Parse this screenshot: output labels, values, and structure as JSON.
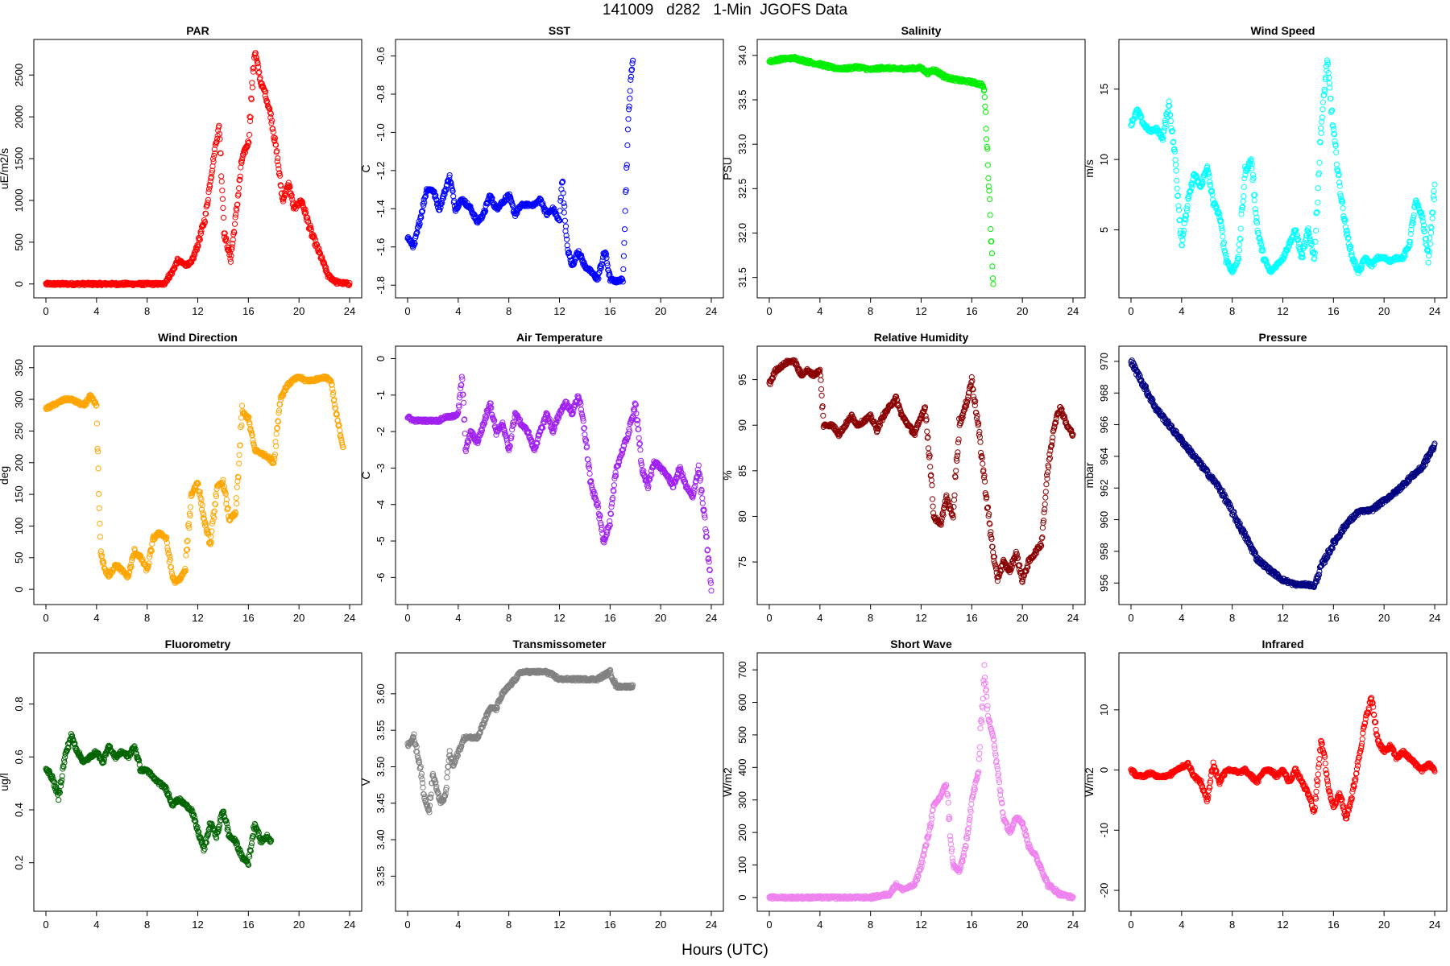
{
  "page": {
    "title": "141009   d282   1-Min  JGOFS Data",
    "xlabel": "Hours (UTC)"
  },
  "x_axis": {
    "xlim": [
      0,
      24
    ],
    "ticks": [
      0,
      4,
      8,
      12,
      16,
      20,
      24
    ]
  },
  "chart_data": [
    {
      "type": "scatter",
      "title": "PAR",
      "ylabel": "uE/m2/s",
      "color": "#ff0000",
      "ylim": [
        -60,
        2820
      ],
      "yticks": [
        0,
        500,
        1000,
        1500,
        2000,
        2500
      ],
      "x": [
        0,
        4,
        8,
        9.3,
        10,
        10.4,
        11,
        11.5,
        12,
        12.6,
        13,
        13.4,
        13.7,
        14.1,
        14.6,
        15,
        15.5,
        16,
        16.5,
        17,
        17.3,
        17.8,
        18.3,
        18.7,
        19.2,
        19.6,
        20.2,
        21,
        21.8,
        22.3,
        23,
        24
      ],
      "y": [
        0,
        0,
        0,
        0,
        150,
        280,
        230,
        250,
        470,
        800,
        1250,
        1650,
        1900,
        600,
        300,
        800,
        1500,
        1700,
        2800,
        2400,
        2300,
        2000,
        1500,
        1000,
        1200,
        900,
        1000,
        600,
        300,
        100,
        20,
        0
      ]
    },
    {
      "type": "scatter",
      "title": "SST",
      "ylabel": "C",
      "color": "#0000ff",
      "ylim": [
        -1.82,
        -0.56
      ],
      "yticks": [
        -0.6,
        -0.8,
        -1.0,
        -1.2,
        -1.4,
        -1.6,
        -1.8
      ],
      "xmax": 17.8,
      "x": [
        0,
        0.5,
        1,
        1.5,
        2,
        2.5,
        3,
        3.3,
        3.8,
        4.3,
        5,
        5.5,
        6,
        6.5,
        7,
        8,
        8.5,
        9,
        10,
        10.5,
        11,
        11.5,
        12,
        12.2,
        12.6,
        13,
        13.5,
        14,
        14.5,
        15,
        15.6,
        16,
        16.5,
        17,
        17.3,
        17.5,
        17.8
      ],
      "y": [
        -1.55,
        -1.6,
        -1.45,
        -1.3,
        -1.3,
        -1.4,
        -1.3,
        -1.23,
        -1.4,
        -1.35,
        -1.4,
        -1.47,
        -1.43,
        -1.33,
        -1.4,
        -1.33,
        -1.43,
        -1.38,
        -1.38,
        -1.35,
        -1.43,
        -1.4,
        -1.47,
        -1.23,
        -1.6,
        -1.7,
        -1.62,
        -1.7,
        -1.73,
        -1.77,
        -1.62,
        -1.77,
        -1.78,
        -1.77,
        -1.2,
        -0.85,
        -0.6
      ]
    },
    {
      "type": "scatter",
      "title": "Salinity",
      "ylabel": "PSU",
      "color": "#00ee00",
      "ylim": [
        31.37,
        34.08
      ],
      "yticks": [
        31.5,
        32.0,
        32.5,
        33.0,
        33.5,
        34.0
      ],
      "xmax": 17.7,
      "x": [
        0,
        1,
        2,
        3,
        4,
        5,
        6,
        7,
        8,
        9,
        10,
        11,
        12,
        12.5,
        13,
        14,
        15,
        16,
        16.8,
        17.0,
        17.2,
        17.4,
        17.6,
        17.7
      ],
      "y": [
        33.93,
        33.96,
        33.97,
        33.93,
        33.9,
        33.86,
        33.85,
        33.87,
        33.84,
        33.86,
        33.85,
        33.85,
        33.86,
        33.8,
        33.84,
        33.75,
        33.72,
        33.7,
        33.67,
        33.6,
        33.0,
        32.4,
        31.7,
        31.43
      ]
    },
    {
      "type": "scatter",
      "title": "Wind Speed",
      "ylabel": "m/s",
      "color": "#00ffff",
      "ylim": [
        0.8,
        17.9
      ],
      "yticks": [
        5,
        10,
        15
      ],
      "x": [
        0,
        0.5,
        1,
        1.5,
        2,
        2.5,
        3,
        3.5,
        4,
        4.5,
        5,
        5.5,
        6,
        6.5,
        7,
        7.5,
        8,
        8.5,
        9,
        9.5,
        10,
        10.5,
        11,
        11.5,
        12,
        12.5,
        13,
        13.5,
        14,
        14.5,
        15,
        15.5,
        16,
        16.5,
        17,
        17.5,
        18,
        18.5,
        19,
        19.5,
        20,
        20.5,
        21,
        21.5,
        22,
        22.5,
        23,
        23.5,
        24
      ],
      "y": [
        12.5,
        13.5,
        12.5,
        12,
        12.2,
        11.5,
        14,
        10,
        4,
        7,
        9,
        8,
        9.5,
        7,
        6,
        3,
        2,
        3,
        9,
        10,
        5,
        3,
        2,
        2.5,
        3,
        4,
        5,
        3,
        5,
        3,
        12,
        17,
        12,
        8,
        5,
        3,
        2,
        3,
        2.5,
        3,
        3,
        2.8,
        3,
        3,
        4,
        7,
        6,
        3,
        8
      ]
    },
    {
      "type": "scatter",
      "title": "Wind Direction",
      "ylabel": "deg",
      "color": "#ffa500",
      "ylim": [
        -10,
        370
      ],
      "yticks": [
        0,
        50,
        100,
        150,
        200,
        250,
        300,
        350
      ],
      "x": [
        0,
        0.5,
        1,
        1.5,
        2,
        2.5,
        3,
        3.5,
        4,
        4.3,
        4.7,
        5,
        5.5,
        6,
        6.5,
        7,
        7.5,
        8,
        8.5,
        9,
        9.5,
        10,
        10.3,
        10.7,
        11,
        11.5,
        12,
        12.5,
        13,
        13.5,
        14,
        14.5,
        15,
        15.5,
        16,
        16.5,
        17,
        17.5,
        18,
        18.5,
        19,
        19.5,
        20,
        20.5,
        21,
        21.5,
        22,
        22.5,
        23,
        23.5
      ],
      "y": [
        285,
        290,
        295,
        300,
        300,
        295,
        290,
        305,
        290,
        60,
        30,
        20,
        40,
        30,
        20,
        60,
        50,
        30,
        80,
        90,
        80,
        20,
        10,
        20,
        30,
        150,
        170,
        110,
        70,
        160,
        170,
        110,
        120,
        280,
        270,
        220,
        215,
        210,
        200,
        300,
        320,
        330,
        335,
        330,
        330,
        332,
        335,
        330,
        270,
        225
      ]
    },
    {
      "type": "scatter",
      "title": "Air Temperature",
      "ylabel": "C",
      "color": "#a020f0",
      "ylim": [
        -6.5,
        0.1
      ],
      "yticks": [
        0,
        -1,
        -2,
        -3,
        -4,
        -5,
        -6
      ],
      "x": [
        0,
        0.5,
        1,
        1.5,
        2,
        2.5,
        3,
        3.5,
        4,
        4.3,
        4.6,
        5,
        5.5,
        6,
        6.5,
        7,
        7.5,
        8,
        8.5,
        9,
        9.5,
        10,
        10.5,
        11,
        11.5,
        12,
        12.5,
        13,
        13.5,
        14,
        14.5,
        15,
        15.5,
        16,
        16.5,
        17,
        17.5,
        18,
        18.5,
        19,
        19.5,
        20,
        20.5,
        21,
        21.5,
        22,
        22.5,
        23,
        23.5,
        24
      ],
      "y": [
        -1.6,
        -1.7,
        -1.7,
        -1.7,
        -1.7,
        -1.7,
        -1.6,
        -1.6,
        -1.5,
        -0.5,
        -2.5,
        -2.0,
        -2.3,
        -1.8,
        -1.2,
        -2.0,
        -1.8,
        -2.5,
        -1.5,
        -1.8,
        -2.0,
        -2.5,
        -2.0,
        -1.5,
        -2.0,
        -1.5,
        -1.2,
        -1.5,
        -1.0,
        -2.0,
        -3.5,
        -4.0,
        -5.0,
        -4.5,
        -3.0,
        -2.5,
        -2.0,
        -1.2,
        -3.0,
        -3.5,
        -2.8,
        -3.0,
        -3.2,
        -3.5,
        -3.0,
        -3.5,
        -3.8,
        -3.0,
        -4.5,
        -6.3
      ]
    },
    {
      "type": "scatter",
      "title": "Relative Humidity",
      "ylabel": "%",
      "color": "#8b0000",
      "ylim": [
        71.3,
        97.7
      ],
      "yticks": [
        75,
        80,
        85,
        90,
        95
      ],
      "x": [
        0,
        0.5,
        1,
        1.5,
        2,
        2.5,
        3,
        3.5,
        4,
        4.3,
        5,
        5.5,
        6,
        6.5,
        7,
        7.5,
        8,
        8.5,
        9,
        9.5,
        10,
        10.5,
        11,
        11.5,
        12,
        12.3,
        12.7,
        13,
        13.5,
        14,
        14.5,
        15,
        15.5,
        16,
        16.5,
        17,
        17.5,
        18,
        18.5,
        19,
        19.5,
        20,
        20.5,
        21,
        21.5,
        22,
        22.5,
        23,
        23.5,
        24
      ],
      "y": [
        94.5,
        96,
        96.5,
        97,
        97,
        95.5,
        96,
        95.5,
        96,
        90,
        90,
        89,
        90,
        91,
        90,
        90.5,
        91,
        89.5,
        91,
        92,
        93,
        91,
        90,
        89,
        91,
        92,
        86,
        80,
        79,
        82,
        80,
        90,
        92,
        95,
        90,
        84,
        78,
        73,
        75,
        74,
        76,
        73,
        75,
        76,
        77,
        85,
        90,
        92,
        90,
        89
      ]
    },
    {
      "type": "scatter",
      "title": "Pressure",
      "ylabel": "mbar",
      "color": "#000080",
      "ylim": [
        955.2,
        970.4
      ],
      "yticks": [
        956,
        958,
        960,
        962,
        964,
        966,
        968,
        970
      ],
      "x": [
        0,
        1,
        2,
        3,
        4,
        5,
        6,
        7,
        8,
        9,
        10,
        11,
        12,
        13,
        14,
        14.5,
        15,
        16,
        17,
        18,
        19,
        20,
        21,
        22,
        23,
        24
      ],
      "y": [
        970,
        968.5,
        967,
        966,
        965,
        964,
        963,
        962,
        960.5,
        959,
        957.5,
        956.8,
        956.2,
        955.9,
        955.9,
        955.8,
        957,
        958.5,
        959.7,
        960.5,
        960.6,
        961.2,
        961.8,
        962.6,
        963.3,
        964.7
      ]
    },
    {
      "type": "scatter",
      "title": "Fluorometry",
      "ylabel": "ug/l",
      "color": "#006400",
      "ylim": [
        0.05,
        0.96
      ],
      "yticks": [
        0.2,
        0.4,
        0.6,
        0.8
      ],
      "xmax": 17.8,
      "x": [
        0,
        0.5,
        1,
        1.5,
        2,
        2.5,
        3,
        3.5,
        4,
        4.5,
        5,
        5.5,
        6,
        6.5,
        7,
        7.5,
        8,
        8.5,
        9,
        9.5,
        10,
        10.5,
        11,
        11.5,
        12,
        12.5,
        13,
        13.5,
        14,
        14.5,
        15,
        15.5,
        16,
        16.5,
        17,
        17.5,
        17.8
      ],
      "y": [
        0.56,
        0.52,
        0.45,
        0.6,
        0.68,
        0.62,
        0.58,
        0.6,
        0.62,
        0.58,
        0.64,
        0.6,
        0.62,
        0.6,
        0.64,
        0.55,
        0.55,
        0.52,
        0.5,
        0.48,
        0.42,
        0.44,
        0.42,
        0.4,
        0.32,
        0.25,
        0.35,
        0.3,
        0.4,
        0.3,
        0.28,
        0.22,
        0.2,
        0.35,
        0.28,
        0.3,
        0.28
      ]
    },
    {
      "type": "scatter",
      "title": "Transmissometer",
      "ylabel": "V",
      "color": "#808080",
      "ylim": [
        3.314,
        3.644
      ],
      "yticks": [
        3.35,
        3.4,
        3.45,
        3.5,
        3.55,
        3.6
      ],
      "xmax": 17.8,
      "x": [
        0,
        0.5,
        1,
        1.3,
        1.7,
        2,
        2.3,
        2.6,
        3,
        3.3,
        3.6,
        4,
        4.5,
        5,
        5.5,
        6,
        6.5,
        7,
        7.5,
        8,
        8.5,
        9,
        10,
        11,
        12,
        13,
        14,
        15,
        16,
        16.5,
        17,
        17.8
      ],
      "y": [
        3.53,
        3.54,
        3.5,
        3.46,
        3.44,
        3.49,
        3.47,
        3.45,
        3.46,
        3.52,
        3.5,
        3.52,
        3.54,
        3.54,
        3.54,
        3.56,
        3.58,
        3.58,
        3.6,
        3.61,
        3.62,
        3.63,
        3.63,
        3.63,
        3.62,
        3.62,
        3.62,
        3.62,
        3.63,
        3.61,
        3.61,
        3.61
      ]
    },
    {
      "type": "scatter",
      "title": "Short Wave",
      "ylabel": "W/m2",
      "color": "#ee82ee",
      "ylim": [
        -15,
        725
      ],
      "yticks": [
        0,
        100,
        200,
        300,
        400,
        500,
        600,
        700
      ],
      "x": [
        0,
        4,
        8,
        9.5,
        10,
        10.5,
        11,
        11.5,
        12,
        12.5,
        13,
        13.5,
        14,
        14.5,
        15,
        15.5,
        16,
        16.5,
        17,
        17.3,
        17.7,
        18,
        18.5,
        19,
        19.5,
        20,
        20.5,
        21,
        21.5,
        22,
        23,
        24
      ],
      "y": [
        0,
        0,
        0,
        10,
        40,
        25,
        30,
        40,
        100,
        180,
        280,
        310,
        350,
        100,
        80,
        150,
        300,
        380,
        700,
        550,
        500,
        400,
        250,
        200,
        250,
        230,
        160,
        130,
        90,
        40,
        10,
        0
      ]
    },
    {
      "type": "scatter",
      "title": "Infrared",
      "ylabel": "W/m2",
      "color": "#ff0000",
      "ylim": [
        -22,
        18
      ],
      "yticks": [
        -20,
        -10,
        0,
        10
      ],
      "x": [
        0,
        0.5,
        1,
        1.5,
        2,
        2.5,
        3,
        3.5,
        4,
        4.5,
        5,
        5.5,
        6,
        6.5,
        7,
        7.5,
        8,
        8.5,
        9,
        9.5,
        10,
        10.5,
        11,
        11.5,
        12,
        12.5,
        13,
        13.5,
        14,
        14.5,
        15,
        15.3,
        15.6,
        16,
        16.5,
        17,
        17.5,
        18,
        18.5,
        19,
        19.5,
        20,
        20.5,
        21,
        21.5,
        22,
        22.5,
        23,
        23.5,
        24
      ],
      "y": [
        0,
        -1,
        -1,
        -0.5,
        -1,
        -1,
        -1,
        0,
        0.5,
        1,
        -1,
        -2,
        -5,
        1,
        -2,
        0,
        0,
        -0.5,
        0,
        -1,
        -2,
        0,
        0,
        -1,
        0,
        -2,
        0,
        -2,
        -4,
        -7,
        5,
        2,
        -3,
        -6,
        -4,
        -8,
        -4,
        2,
        8,
        12,
        5,
        3,
        4,
        2,
        3,
        2,
        1,
        0,
        1,
        0
      ]
    }
  ]
}
